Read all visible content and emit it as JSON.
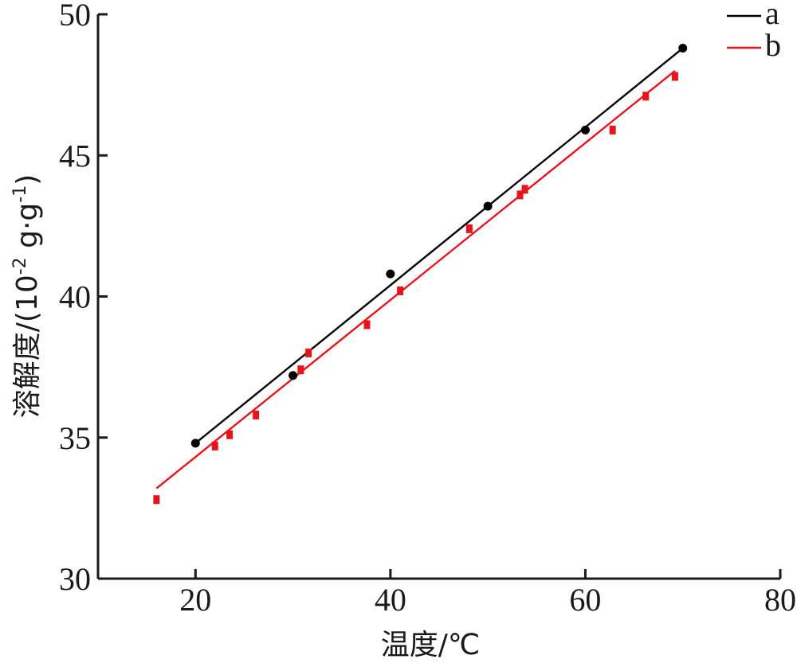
{
  "chart_data": {
    "type": "scatter",
    "xlabel": "温度/℃",
    "ylabel_main": "溶解度/(10",
    "ylabel_sup1": "-2",
    "ylabel_mid": " g·g",
    "ylabel_sup2": "-1",
    "ylabel_end": ")",
    "xlim": [
      10,
      80
    ],
    "ylim": [
      30,
      50
    ],
    "xticks": [
      20,
      40,
      60,
      80
    ],
    "yticks": [
      30,
      35,
      40,
      45,
      50
    ],
    "legend_position": "top-right",
    "series": [
      {
        "name": "a",
        "color": "#000000",
        "marker": "circle",
        "x": [
          20,
          30,
          40,
          50,
          60,
          70
        ],
        "y": [
          34.8,
          37.2,
          40.8,
          43.2,
          45.9,
          48.8
        ],
        "fit": [
          [
            20,
            34.8
          ],
          [
            70,
            48.8
          ]
        ]
      },
      {
        "name": "b",
        "color": "#e8141b",
        "marker": "square",
        "x": [
          16,
          22,
          23.5,
          26.2,
          30.8,
          31.6,
          37.6,
          41,
          48.1,
          53.3,
          53.8,
          62.8,
          66.2,
          69.2
        ],
        "y": [
          32.8,
          34.7,
          35.1,
          35.8,
          37.4,
          38.0,
          39.0,
          40.2,
          42.4,
          43.6,
          43.8,
          45.9,
          47.1,
          47.8
        ],
        "fit": [
          [
            16,
            33.2
          ],
          [
            69.2,
            48.0
          ]
        ]
      }
    ]
  }
}
